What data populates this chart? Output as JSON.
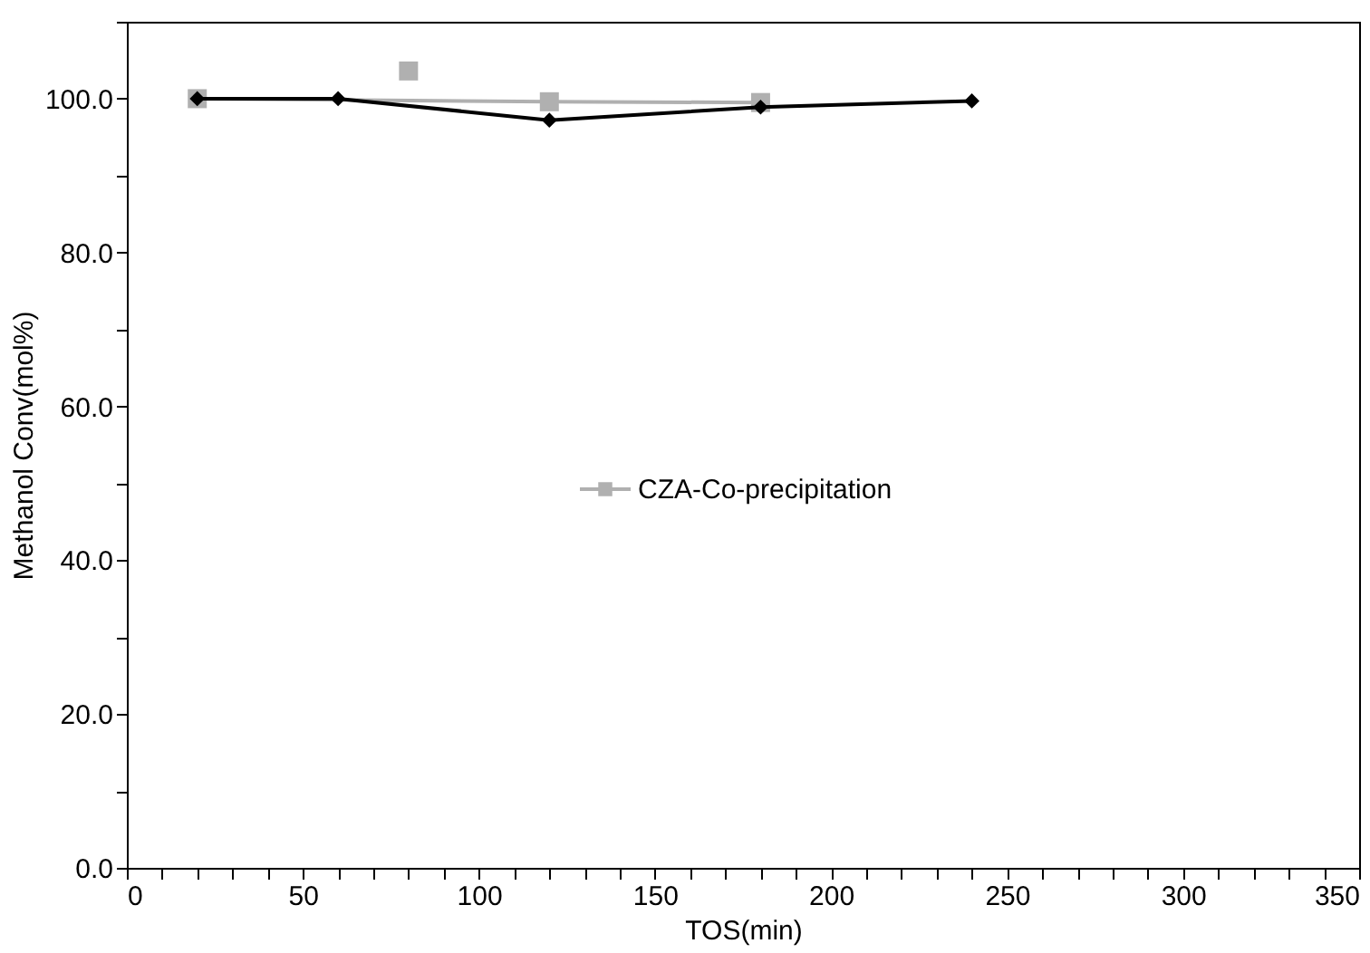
{
  "chart_data": {
    "type": "line",
    "xlabel": "TOS(min)",
    "ylabel": "Methanol Conv(mol%)",
    "xlim": [
      0,
      350
    ],
    "ylim": [
      0,
      110
    ],
    "xticks": [
      0,
      {
        "value": 10,
        "label": null
      },
      {
        "value": 20,
        "label": null
      },
      {
        "value": 30,
        "label": null
      },
      {
        "value": 40,
        "label": null
      },
      50,
      {
        "value": 60,
        "label": null
      },
      {
        "value": 70,
        "label": null
      },
      {
        "value": 80,
        "label": null
      },
      {
        "value": 90,
        "label": null
      },
      100,
      {
        "value": 110,
        "label": null
      },
      {
        "value": 120,
        "label": null
      },
      {
        "value": 130,
        "label": null
      },
      {
        "value": 140,
        "label": null
      },
      150,
      {
        "value": 160,
        "label": null
      },
      {
        "value": 170,
        "label": null
      },
      {
        "value": 180,
        "label": null
      },
      {
        "value": 190,
        "label": null
      },
      200,
      {
        "value": 210,
        "label": null
      },
      {
        "value": 220,
        "label": null
      },
      {
        "value": 230,
        "label": null
      },
      {
        "value": 240,
        "label": null
      },
      250,
      {
        "value": 260,
        "label": null
      },
      {
        "value": 270,
        "label": null
      },
      {
        "value": 280,
        "label": null
      },
      {
        "value": 290,
        "label": null
      },
      300,
      {
        "value": 310,
        "label": null
      },
      {
        "value": 320,
        "label": null
      },
      {
        "value": 330,
        "label": null
      },
      {
        "value": 340,
        "label": null
      },
      350
    ],
    "yticks": [
      {
        "value": 0,
        "label": "0.0"
      },
      {
        "value": 10,
        "label": null
      },
      {
        "value": 20,
        "label": "20.0"
      },
      {
        "value": 30,
        "label": null
      },
      {
        "value": 40,
        "label": "40.0"
      },
      {
        "value": 50,
        "label": null
      },
      {
        "value": 60,
        "label": "60.0"
      },
      {
        "value": 70,
        "label": null
      },
      {
        "value": 80,
        "label": "80.0"
      },
      {
        "value": 90,
        "label": null
      },
      {
        "value": 100,
        "label": "100.0"
      },
      {
        "value": 110,
        "label": null
      }
    ],
    "grid": false,
    "legend": "right",
    "series": [
      {
        "name": "CZA-Co-precipitation",
        "color": "#b0b0b0",
        "marker": "square",
        "x": [
          20,
          120,
          180
        ],
        "values": [
          100,
          99.6,
          99.5
        ]
      },
      {
        "type": "scatter",
        "color": "#b0b0b0",
        "marker": "square",
        "x": [
          80
        ],
        "values": [
          103.6
        ]
      },
      {
        "color": "#000000",
        "marker": "diamond",
        "x": [
          20,
          60,
          120,
          180,
          240
        ],
        "values": [
          100,
          100,
          97.2,
          98.9,
          99.7
        ]
      }
    ]
  }
}
